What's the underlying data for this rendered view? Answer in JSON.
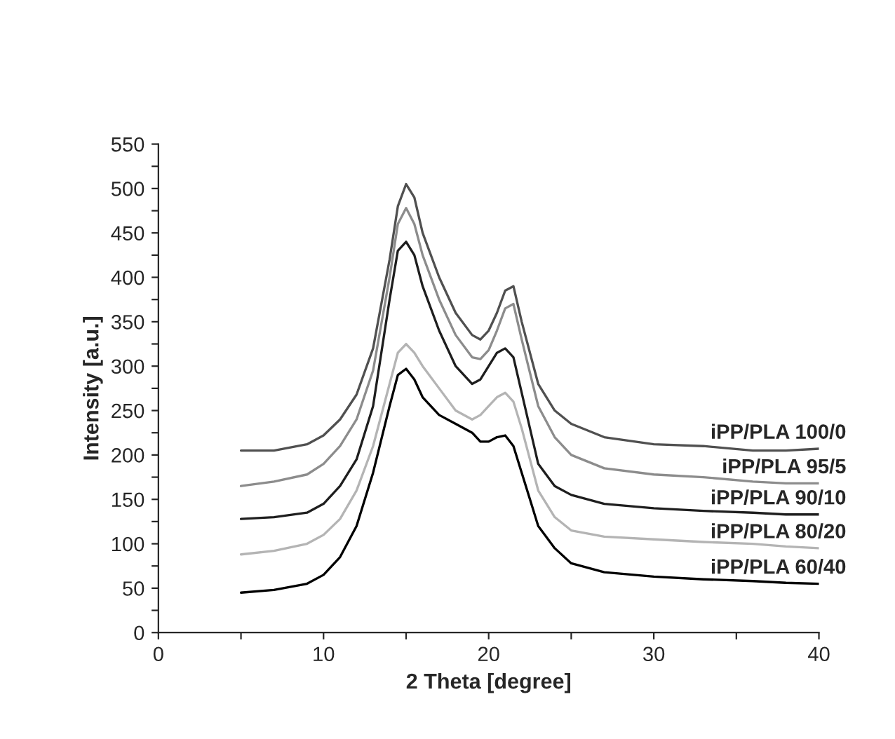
{
  "chart_data": {
    "type": "line",
    "xlabel": "2 Theta [degree]",
    "ylabel": "Intensity [a.u.]",
    "x": [
      5,
      7,
      9,
      10,
      11,
      12,
      13,
      14,
      14.5,
      15,
      15.5,
      16,
      17,
      18,
      19,
      19.5,
      20,
      20.5,
      21,
      21.5,
      22,
      23,
      24,
      25,
      27,
      30,
      33,
      36,
      38,
      40
    ],
    "series": [
      {
        "name": "iPP/PLA 100/0",
        "color": "#505050",
        "values": [
          205,
          205,
          212,
          222,
          240,
          268,
          320,
          420,
          480,
          505,
          490,
          450,
          400,
          360,
          335,
          330,
          340,
          360,
          385,
          390,
          350,
          280,
          250,
          235,
          220,
          212,
          210,
          205,
          205,
          207
        ]
      },
      {
        "name": "iPP/PLA 95/5",
        "color": "#8c8c8c",
        "values": [
          165,
          170,
          178,
          190,
          210,
          240,
          295,
          400,
          460,
          478,
          460,
          425,
          375,
          335,
          310,
          308,
          318,
          340,
          365,
          370,
          330,
          255,
          220,
          200,
          185,
          178,
          175,
          170,
          168,
          168
        ]
      },
      {
        "name": "iPP/PLA 90/10",
        "color": "#1e1e1e",
        "values": [
          128,
          130,
          135,
          145,
          165,
          195,
          255,
          375,
          430,
          440,
          425,
          390,
          340,
          300,
          280,
          285,
          300,
          315,
          320,
          310,
          270,
          190,
          165,
          155,
          145,
          140,
          137,
          135,
          133,
          133
        ]
      },
      {
        "name": "iPP/PLA 80/20",
        "color": "#b4b4b4",
        "values": [
          88,
          92,
          100,
          110,
          128,
          160,
          210,
          280,
          315,
          325,
          315,
          300,
          275,
          250,
          240,
          245,
          255,
          265,
          270,
          260,
          230,
          160,
          130,
          115,
          108,
          105,
          102,
          100,
          97,
          95
        ]
      },
      {
        "name": "iPP/PLA 60/40",
        "color": "#000000",
        "values": [
          45,
          48,
          55,
          65,
          85,
          120,
          180,
          255,
          290,
          297,
          285,
          265,
          245,
          235,
          225,
          215,
          215,
          220,
          222,
          210,
          180,
          120,
          95,
          78,
          68,
          63,
          60,
          58,
          56,
          55
        ]
      }
    ],
    "xlim": [
      0,
      40
    ],
    "xticks": [
      0,
      {
        "value": 5,
        "label": null
      },
      10,
      {
        "value": 15,
        "label": null
      },
      20,
      {
        "value": 25,
        "label": null
      },
      30,
      {
        "value": 35,
        "label": null
      },
      40
    ],
    "ylim": [
      0,
      550
    ],
    "yticks": [
      0,
      {
        "value": 25,
        "label": null
      },
      50,
      {
        "value": 75,
        "label": null
      },
      100,
      {
        "value": 125,
        "label": null
      },
      150,
      {
        "value": 175,
        "label": null
      },
      200,
      {
        "value": 225,
        "label": null
      },
      250,
      {
        "value": 275,
        "label": null
      },
      300,
      {
        "value": 325,
        "label": null
      },
      350,
      {
        "value": 375,
        "label": null
      },
      400,
      {
        "value": 425,
        "label": null
      },
      450,
      {
        "value": 475,
        "label": null
      },
      500,
      {
        "value": 525,
        "label": null
      },
      550
    ],
    "grid": false,
    "legend": false,
    "marker": "none",
    "line_style": "solid"
  }
}
